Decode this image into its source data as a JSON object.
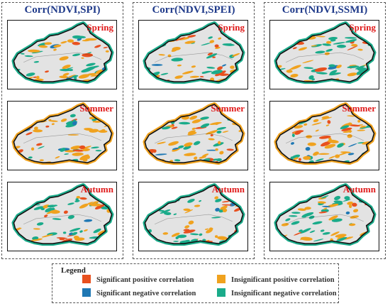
{
  "columns": [
    {
      "title": "Corr(NDVI,SPI)"
    },
    {
      "title": "Corr(NDVI,SPEI)"
    },
    {
      "title": "Corr(NDVI,SSMI)"
    }
  ],
  "seasons": [
    "Spring",
    "Summer",
    "Autumn"
  ],
  "legend": {
    "title": "Legend",
    "items": [
      {
        "label": "Significant positive correlation",
        "color": "#e8501e"
      },
      {
        "label": "Significant negative correlation",
        "color": "#1f78b4"
      },
      {
        "label": "Insignificant positive correlation",
        "color": "#f0a21e"
      },
      {
        "label": "Insignificant negative correlation",
        "color": "#1aab8a"
      }
    ]
  },
  "map_colors": {
    "background": "#e3e3e3",
    "outline": "#111111",
    "season_label": "#e01a1a"
  }
}
